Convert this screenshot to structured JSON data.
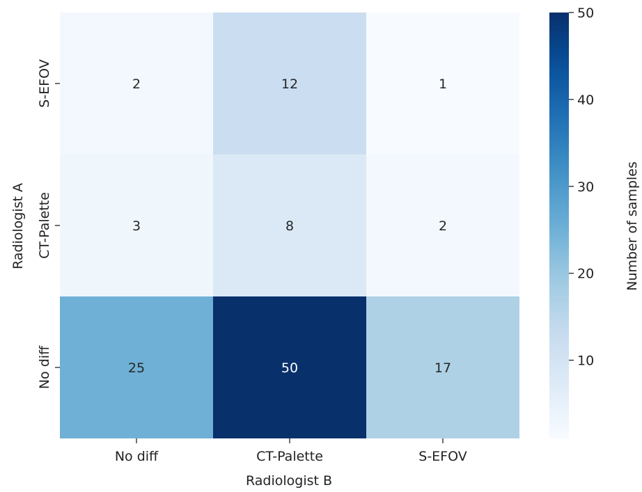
{
  "chart_data": {
    "type": "heatmap",
    "colormap": "Blues",
    "x_categories": [
      "No diff",
      "CT-Palette",
      "S-EFOV"
    ],
    "y_categories": [
      "S-EFOV",
      "CT-Palette",
      "No diff"
    ],
    "values": [
      [
        2,
        12,
        1
      ],
      [
        3,
        8,
        2
      ],
      [
        25,
        50,
        17
      ]
    ],
    "xlabel": "Radiologist B",
    "ylabel": "Radiologist A",
    "colorbar": {
      "label": "Number of samples",
      "min": 1,
      "max": 50,
      "ticks": [
        10,
        20,
        30,
        40,
        50
      ]
    },
    "annotations": true
  }
}
